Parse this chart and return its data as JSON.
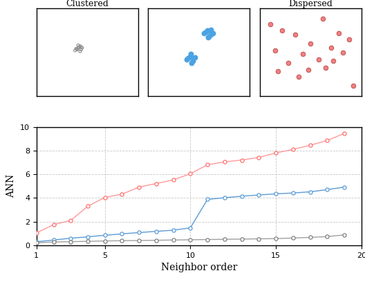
{
  "title_clustered": "Clustered",
  "title_dispersed": "Dispersed",
  "cluster1_x": [
    0.38,
    0.4,
    0.42,
    0.44,
    0.41,
    0.43,
    0.39,
    0.43,
    0.45,
    0.41,
    0.4,
    0.44
  ],
  "cluster1_y": [
    0.52,
    0.54,
    0.56,
    0.53,
    0.55,
    0.57,
    0.54,
    0.51,
    0.55,
    0.58,
    0.53,
    0.56
  ],
  "cluster2a_x": [
    0.55,
    0.58,
    0.62,
    0.6,
    0.57,
    0.64,
    0.59,
    0.62
  ],
  "cluster2a_y": [
    0.72,
    0.75,
    0.7,
    0.68,
    0.73,
    0.72,
    0.67,
    0.76
  ],
  "cluster2b_x": [
    0.38,
    0.41,
    0.44,
    0.42,
    0.39,
    0.46,
    0.43
  ],
  "cluster2b_y": [
    0.42,
    0.45,
    0.4,
    0.48,
    0.43,
    0.44,
    0.38
  ],
  "dispersed_x": [
    0.1,
    0.22,
    0.35,
    0.62,
    0.78,
    0.88,
    0.5,
    0.15,
    0.7,
    0.42,
    0.82,
    0.28,
    0.58,
    0.72,
    0.48,
    0.18,
    0.65,
    0.38,
    0.92
  ],
  "dispersed_y": [
    0.82,
    0.75,
    0.7,
    0.88,
    0.72,
    0.65,
    0.6,
    0.52,
    0.55,
    0.48,
    0.5,
    0.38,
    0.42,
    0.4,
    0.3,
    0.28,
    0.32,
    0.22,
    0.12
  ],
  "neighbor_order": [
    1,
    2,
    3,
    4,
    5,
    6,
    7,
    8,
    9,
    10,
    11,
    12,
    13,
    14,
    15,
    16,
    17,
    18,
    19
  ],
  "ann_black": [
    0.22,
    0.28,
    0.31,
    0.34,
    0.37,
    0.39,
    0.41,
    0.43,
    0.45,
    0.47,
    0.49,
    0.51,
    0.53,
    0.55,
    0.57,
    0.62,
    0.67,
    0.74,
    0.88
  ],
  "ann_blue": [
    0.3,
    0.45,
    0.6,
    0.72,
    0.85,
    0.97,
    1.08,
    1.18,
    1.28,
    1.48,
    3.88,
    4.02,
    4.15,
    4.25,
    4.35,
    4.42,
    4.52,
    4.7,
    4.92
  ],
  "ann_red": [
    1.05,
    1.75,
    2.1,
    3.3,
    4.05,
    4.32,
    4.92,
    5.22,
    5.52,
    6.05,
    6.8,
    7.05,
    7.2,
    7.42,
    7.8,
    8.1,
    8.45,
    8.85,
    9.45
  ],
  "line_black_color": "#A0A0A0",
  "line_blue_color": "#5B9BD5",
  "line_red_color": "#FF9999",
  "dot_black_color": "#808080",
  "dot_blue_color": "#5B9BD5",
  "dot_red_color": "#FF7070",
  "scatter1_color": "#909090",
  "scatter2_color": "#4BA3E3",
  "scatter3_face": "#F08080",
  "scatter3_edge": "#C05050",
  "ann_ylabel": "ANN",
  "ann_xlabel": "Neighbor order",
  "ylim": [
    0,
    10
  ],
  "xlim": [
    1,
    20
  ],
  "yticks": [
    0,
    2,
    4,
    6,
    8,
    10
  ],
  "xticks": [
    1,
    5,
    10,
    15,
    20
  ]
}
